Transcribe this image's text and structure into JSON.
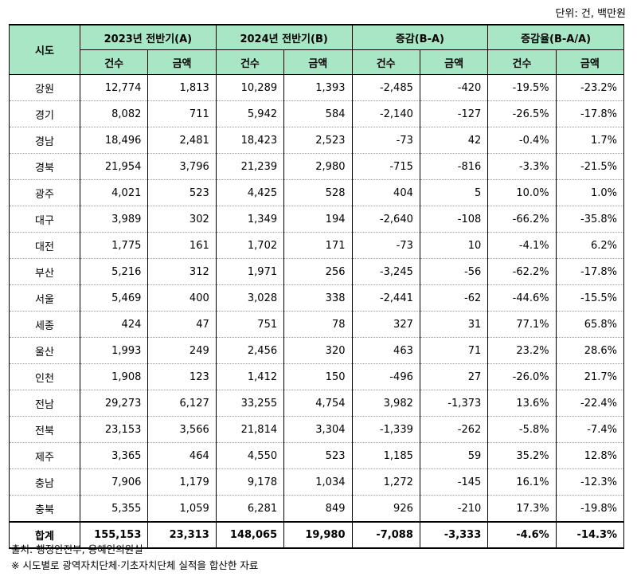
{
  "unit_label": "단위: 건, 백만원",
  "headers": {
    "region": "시도",
    "groups": [
      "2023년 전반기(A)",
      "2024년 전반기(B)",
      "증감(B-A)",
      "증감율(B-A/A)"
    ],
    "sub": [
      "건수",
      "금액",
      "건수",
      "금액",
      "건수",
      "금액",
      "건수",
      "금액"
    ]
  },
  "rows": [
    {
      "region": "강원",
      "v": [
        "12,774",
        "1,813",
        "10,289",
        "1,393",
        "-2,485",
        "-420",
        "-19.5%",
        "-23.2%"
      ]
    },
    {
      "region": "경기",
      "v": [
        "8,082",
        "711",
        "5,942",
        "584",
        "-2,140",
        "-127",
        "-26.5%",
        "-17.8%"
      ]
    },
    {
      "region": "경남",
      "v": [
        "18,496",
        "2,481",
        "18,423",
        "2,523",
        "-73",
        "42",
        "-0.4%",
        "1.7%"
      ]
    },
    {
      "region": "경북",
      "v": [
        "21,954",
        "3,796",
        "21,239",
        "2,980",
        "-715",
        "-816",
        "-3.3%",
        "-21.5%"
      ]
    },
    {
      "region": "광주",
      "v": [
        "4,021",
        "523",
        "4,425",
        "528",
        "404",
        "5",
        "10.0%",
        "1.0%"
      ]
    },
    {
      "region": "대구",
      "v": [
        "3,989",
        "302",
        "1,349",
        "194",
        "-2,640",
        "-108",
        "-66.2%",
        "-35.8%"
      ]
    },
    {
      "region": "대전",
      "v": [
        "1,775",
        "161",
        "1,702",
        "171",
        "-73",
        "10",
        "-4.1%",
        "6.2%"
      ]
    },
    {
      "region": "부산",
      "v": [
        "5,216",
        "312",
        "1,971",
        "256",
        "-3,245",
        "-56",
        "-62.2%",
        "-17.8%"
      ]
    },
    {
      "region": "서울",
      "v": [
        "5,469",
        "400",
        "3,028",
        "338",
        "-2,441",
        "-62",
        "-44.6%",
        "-15.5%"
      ]
    },
    {
      "region": "세종",
      "v": [
        "424",
        "47",
        "751",
        "78",
        "327",
        "31",
        "77.1%",
        "65.8%"
      ]
    },
    {
      "region": "울산",
      "v": [
        "1,993",
        "249",
        "2,456",
        "320",
        "463",
        "71",
        "23.2%",
        "28.6%"
      ]
    },
    {
      "region": "인천",
      "v": [
        "1,908",
        "123",
        "1,412",
        "150",
        "-496",
        "27",
        "-26.0%",
        "21.7%"
      ]
    },
    {
      "region": "전남",
      "v": [
        "29,273",
        "6,127",
        "33,255",
        "4,754",
        "3,982",
        "-1,373",
        "13.6%",
        "-22.4%"
      ]
    },
    {
      "region": "전북",
      "v": [
        "23,153",
        "3,566",
        "21,814",
        "3,304",
        "-1,339",
        "-262",
        "-5.8%",
        "-7.4%"
      ]
    },
    {
      "region": "제주",
      "v": [
        "3,365",
        "464",
        "4,550",
        "523",
        "1,185",
        "59",
        "35.2%",
        "12.8%"
      ]
    },
    {
      "region": "충남",
      "v": [
        "7,906",
        "1,179",
        "9,178",
        "1,034",
        "1,272",
        "-145",
        "16.1%",
        "-12.3%"
      ]
    },
    {
      "region": "충북",
      "v": [
        "5,355",
        "1,059",
        "6,281",
        "849",
        "926",
        "-210",
        "17.3%",
        "-19.8%"
      ]
    }
  ],
  "total": {
    "region": "합계",
    "v": [
      "155,153",
      "23,313",
      "148,065",
      "19,980",
      "-7,088",
      "-3,333",
      "-4.6%",
      "-14.3%"
    ]
  },
  "notes": {
    "source": "출처: 행정안전부, 용혜인의원실",
    "remark": "※ 시도별로 광역자치단체·기초자치단체 실적을 합산한 자료"
  },
  "colors": {
    "header_bg": "#a8e6c6"
  }
}
